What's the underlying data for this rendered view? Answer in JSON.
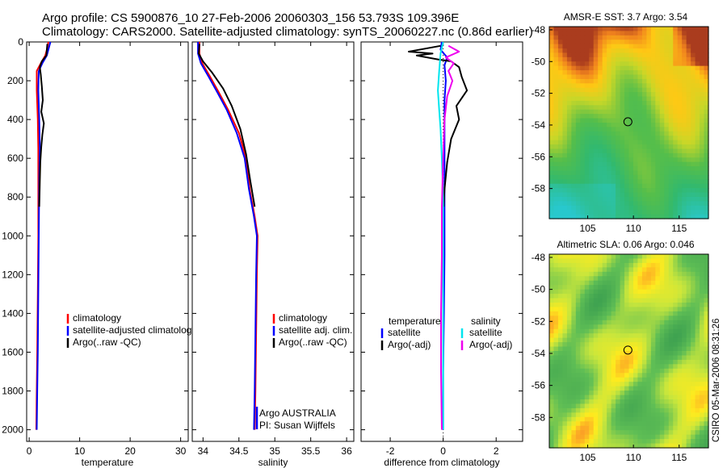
{
  "title": {
    "line1": "Argo profile: CS 5900876_10 27-Feb-2006 20060303_156 53.793S 109.396E",
    "line2": "Climatology: CARS2000. Satellite-adjusted climatology: synTS_20060227.nc (0.86d earlier)"
  },
  "stamp": "CSIRO 05-Mar-2006 08:31:26",
  "colors": {
    "climatology": "#ff0000",
    "satellite": "#0000ff",
    "argo": "#000000",
    "sal_satellite": "#00e5ee",
    "sal_argo": "#ee00ee"
  },
  "chart_data": [
    {
      "type": "line",
      "id": "temperature",
      "xlabel": "temperature",
      "xlim": [
        -0.5,
        31.5
      ],
      "ylim": [
        0,
        2060
      ],
      "xticks": [
        0,
        10,
        20,
        30
      ],
      "xtick_labels": [
        "0",
        "10",
        "20",
        "30"
      ],
      "yticks": [
        0,
        200,
        400,
        600,
        800,
        1000,
        1200,
        1400,
        1600,
        1800,
        2000
      ],
      "ytick_labels": [
        "0",
        "200",
        "400",
        "600",
        "800",
        "1000",
        "1200",
        "1400",
        "1600",
        "1800",
        "2000"
      ],
      "legend": [
        "climatology",
        "satellite-adjusted climatology",
        "Argo(..raw -QC)"
      ],
      "series": [
        {
          "name": "climatology",
          "color": "#ff0000",
          "points": [
            [
              3.8,
              0
            ],
            [
              3.6,
              30
            ],
            [
              3.2,
              70
            ],
            [
              2.3,
              110
            ],
            [
              1.5,
              150
            ],
            [
              1.5,
              250
            ],
            [
              1.7,
              400
            ],
            [
              1.8,
              550
            ],
            [
              1.8,
              700
            ],
            [
              1.8,
              1000
            ],
            [
              1.7,
              1300
            ],
            [
              1.6,
              1600
            ],
            [
              1.5,
              1800
            ],
            [
              1.4,
              2000
            ]
          ]
        },
        {
          "name": "satellite-adjusted climatology",
          "color": "#0000ff",
          "points": [
            [
              4.2,
              0
            ],
            [
              3.9,
              30
            ],
            [
              3.5,
              70
            ],
            [
              2.6,
              110
            ],
            [
              1.9,
              150
            ],
            [
              1.8,
              250
            ],
            [
              2.0,
              400
            ],
            [
              2.1,
              550
            ],
            [
              2.0,
              700
            ],
            [
              1.9,
              1000
            ],
            [
              1.8,
              1300
            ],
            [
              1.7,
              1600
            ],
            [
              1.6,
              1800
            ],
            [
              1.5,
              2000
            ]
          ]
        },
        {
          "name": "Argo(..raw -QC)",
          "color": "#000000",
          "points": [
            [
              3.6,
              10
            ],
            [
              3.5,
              40
            ],
            [
              3.4,
              70
            ],
            [
              2.5,
              100
            ],
            [
              2.1,
              130
            ],
            [
              2.3,
              170
            ],
            [
              2.5,
              230
            ],
            [
              2.7,
              300
            ],
            [
              2.4,
              360
            ],
            [
              2.9,
              420
            ],
            [
              2.6,
              480
            ],
            [
              2.4,
              540
            ],
            [
              2.2,
              620
            ],
            [
              2.1,
              720
            ],
            [
              2.0,
              850
            ]
          ]
        }
      ]
    },
    {
      "type": "line",
      "id": "salinity",
      "xlabel": "salinity",
      "xlim": [
        33.85,
        36.1
      ],
      "ylim": [
        0,
        2060
      ],
      "xticks": [
        34,
        34.5,
        35,
        35.5,
        36
      ],
      "xtick_labels": [
        "34",
        "34.5",
        "35",
        "35.5",
        "36"
      ],
      "legend": [
        "climatology",
        "satellite adj. clim.",
        "Argo(..raw -QC)"
      ],
      "annotation": [
        "Argo AUSTRALIA",
        "PI: Susan Wijffels"
      ],
      "series": [
        {
          "name": "climatology",
          "color": "#ff0000",
          "points": [
            [
              33.95,
              0
            ],
            [
              33.95,
              60
            ],
            [
              33.99,
              110
            ],
            [
              34.1,
              180
            ],
            [
              34.22,
              260
            ],
            [
              34.35,
              350
            ],
            [
              34.5,
              470
            ],
            [
              34.6,
              600
            ],
            [
              34.65,
              760
            ],
            [
              34.72,
              900
            ],
            [
              34.76,
              1000
            ],
            [
              34.75,
              1200
            ],
            [
              34.74,
              1500
            ],
            [
              34.73,
              1800
            ],
            [
              34.72,
              2000
            ]
          ]
        },
        {
          "name": "satellite adj. clim.",
          "color": "#0000ff",
          "points": [
            [
              33.93,
              0
            ],
            [
              33.93,
              60
            ],
            [
              33.97,
              110
            ],
            [
              34.08,
              180
            ],
            [
              34.2,
              260
            ],
            [
              34.33,
              350
            ],
            [
              34.47,
              470
            ],
            [
              34.58,
              600
            ],
            [
              34.64,
              760
            ],
            [
              34.71,
              900
            ],
            [
              34.75,
              1000
            ],
            [
              34.74,
              1200
            ],
            [
              34.73,
              1500
            ],
            [
              34.72,
              1800
            ],
            [
              34.71,
              2000
            ]
          ]
        },
        {
          "name": "Argo(..raw -QC)",
          "color": "#000000",
          "points": [
            [
              33.95,
              10
            ],
            [
              33.94,
              60
            ],
            [
              34.0,
              100
            ],
            [
              34.13,
              160
            ],
            [
              34.28,
              240
            ],
            [
              34.4,
              330
            ],
            [
              34.52,
              450
            ],
            [
              34.6,
              580
            ],
            [
              34.66,
              720
            ],
            [
              34.72,
              850
            ]
          ]
        }
      ]
    },
    {
      "type": "line",
      "id": "difference",
      "xlabel": "difference from climatology",
      "xlim": [
        -3.1,
        3.0
      ],
      "ylim": [
        0,
        2060
      ],
      "xticks": [
        -2,
        0,
        2
      ],
      "xtick_labels": [
        "-2",
        "0",
        "2"
      ],
      "legend_headers": [
        "temperature",
        "salinity"
      ],
      "legend_temperature": [
        "satellite",
        "Argo(-adj)"
      ],
      "legend_salinity": [
        "satellite",
        "salinity_argo_label"
      ],
      "legend_salinity_labels": [
        "satellite",
        "Argo(-adj)"
      ],
      "series": [
        {
          "name": "temperature satellite",
          "color": "#0000ff",
          "points": [
            [
              -0.05,
              0
            ],
            [
              -0.1,
              40
            ],
            [
              0.15,
              80
            ],
            [
              0.05,
              120
            ],
            [
              0.1,
              200
            ],
            [
              0.05,
              300
            ],
            [
              0.05,
              500
            ],
            [
              0.05,
              800
            ],
            [
              0.05,
              1100
            ],
            [
              0.03,
              1400
            ],
            [
              0.0,
              1700
            ],
            [
              0.0,
              2000
            ]
          ]
        },
        {
          "name": "temperature Argo(-adj)",
          "color": "#000000",
          "points": [
            [
              -0.1,
              20
            ],
            [
              -1.3,
              50
            ],
            [
              -0.4,
              60
            ],
            [
              -1.0,
              70
            ],
            [
              -0.2,
              90
            ],
            [
              0.3,
              100
            ],
            [
              0.6,
              130
            ],
            [
              0.7,
              180
            ],
            [
              0.9,
              250
            ],
            [
              0.5,
              330
            ],
            [
              0.6,
              400
            ],
            [
              0.3,
              500
            ],
            [
              0.15,
              620
            ],
            [
              0.05,
              760
            ],
            [
              0.02,
              850
            ]
          ]
        },
        {
          "name": "salinity satellite",
          "color": "#00e5ee",
          "points": [
            [
              0.0,
              0
            ],
            [
              -0.1,
              60
            ],
            [
              -0.15,
              150
            ],
            [
              -0.2,
              250
            ],
            [
              -0.15,
              350
            ],
            [
              -0.1,
              450
            ],
            [
              -0.05,
              600
            ],
            [
              0.0,
              800
            ],
            [
              0.0,
              1200
            ],
            [
              0.0,
              1600
            ],
            [
              0.0,
              2000
            ]
          ]
        },
        {
          "name": "salinity Argo(-adj)",
          "color": "#ee00ee",
          "points": [
            [
              0.2,
              20
            ],
            [
              0.6,
              50
            ],
            [
              0.1,
              80
            ],
            [
              0.4,
              110
            ],
            [
              0.2,
              150
            ],
            [
              0.35,
              200
            ],
            [
              0.15,
              280
            ],
            [
              0.05,
              400
            ],
            [
              0.0,
              600
            ],
            [
              -0.05,
              850
            ],
            [
              -0.05,
              1100
            ],
            [
              -0.08,
              1400
            ],
            [
              -0.08,
              1700
            ],
            [
              -0.05,
              2000
            ]
          ]
        }
      ]
    },
    {
      "type": "heatmap",
      "id": "sst_map",
      "title": "AMSR-E SST: 3.7  Argo: 3.54",
      "xlim": [
        100.8,
        118.2
      ],
      "ylim": [
        -59.9,
        -47.8
      ],
      "xticks": [
        105,
        110,
        115
      ],
      "xtick_labels": [
        "105",
        "110",
        "115"
      ],
      "yticks": [
        -48,
        -50,
        -52,
        -54,
        -56,
        -58
      ],
      "ytick_labels": [
        "-48",
        "-50",
        "-52",
        "-54",
        "-56",
        "-58"
      ],
      "marker": [
        109.396,
        -53.793
      ]
    },
    {
      "type": "heatmap",
      "id": "sla_map",
      "title": "Altimetric SLA: 0.06  Argo: 0.046",
      "xlim": [
        100.8,
        118.2
      ],
      "ylim": [
        -59.9,
        -47.8
      ],
      "xticks": [
        105,
        110,
        115
      ],
      "xtick_labels": [
        "105",
        "110",
        "115"
      ],
      "yticks": [
        -48,
        -50,
        -52,
        -54,
        -56,
        -58
      ],
      "ytick_labels": [
        "-48",
        "-50",
        "-52",
        "-54",
        "-56",
        "-58"
      ],
      "marker": [
        109.396,
        -53.793
      ]
    }
  ]
}
